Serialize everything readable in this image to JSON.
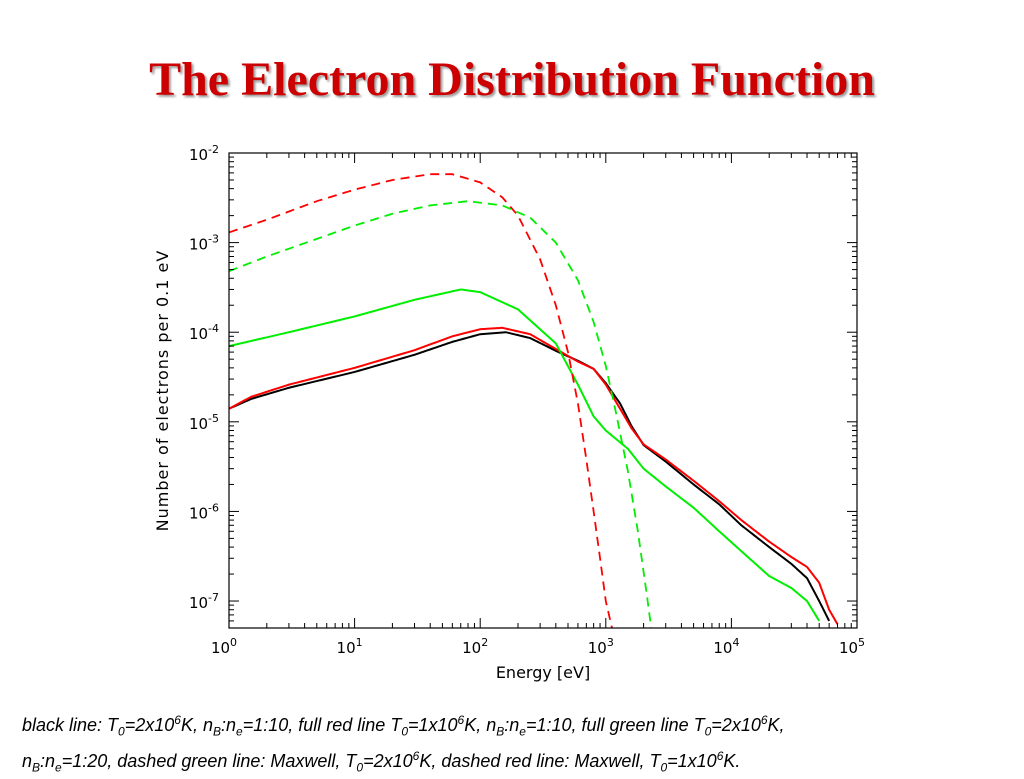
{
  "slide": {
    "title": "The Electron Distribution Function"
  },
  "chart_data": {
    "type": "line",
    "xlabel": "Energy [eV]",
    "ylabel": "Number of electrons per 0.1 eV",
    "xscale": "log",
    "yscale": "log",
    "xlim": [
      1,
      100000
    ],
    "ylim": [
      5e-08,
      0.01
    ],
    "x_tick_labels": [
      {
        "base": "10",
        "exp": "0"
      },
      {
        "base": "10",
        "exp": "1"
      },
      {
        "base": "10",
        "exp": "2"
      },
      {
        "base": "10",
        "exp": "3"
      },
      {
        "base": "10",
        "exp": "4"
      },
      {
        "base": "10",
        "exp": "5"
      }
    ],
    "y_tick_labels": [
      {
        "base": "10",
        "exp": "-7"
      },
      {
        "base": "10",
        "exp": "-6"
      },
      {
        "base": "10",
        "exp": "-5"
      },
      {
        "base": "10",
        "exp": "-4"
      },
      {
        "base": "10",
        "exp": "-3"
      },
      {
        "base": "10",
        "exp": "-2"
      }
    ],
    "series": [
      {
        "color": "#000000",
        "style": "solid",
        "points": [
          [
            1,
            1.4e-05
          ],
          [
            1.5,
            1.8e-05
          ],
          [
            3,
            2.4e-05
          ],
          [
            10,
            3.6e-05
          ],
          [
            30,
            5.6e-05
          ],
          [
            60,
            7.8e-05
          ],
          [
            100,
            9.5e-05
          ],
          [
            160,
            0.0001
          ],
          [
            250,
            8.6e-05
          ],
          [
            400,
            6.2e-05
          ],
          [
            600,
            4.8e-05
          ],
          [
            800,
            3.9e-05
          ],
          [
            1000,
            2.7e-05
          ],
          [
            1300,
            1.6e-05
          ],
          [
            1600,
            9e-06
          ],
          [
            2000,
            5.5e-06
          ],
          [
            3000,
            3.6e-06
          ],
          [
            5000,
            2e-06
          ],
          [
            8000,
            1.2e-06
          ],
          [
            12000,
            7e-07
          ],
          [
            20000,
            4e-07
          ],
          [
            30000,
            2.6e-07
          ],
          [
            40000,
            1.8e-07
          ],
          [
            50000,
            1e-07
          ],
          [
            60000,
            6e-08
          ]
        ]
      },
      {
        "color": "#ff0000",
        "style": "solid",
        "points": [
          [
            1,
            1.4e-05
          ],
          [
            1.5,
            1.9e-05
          ],
          [
            3,
            2.6e-05
          ],
          [
            10,
            4e-05
          ],
          [
            30,
            6.3e-05
          ],
          [
            60,
            9e-05
          ],
          [
            100,
            0.000108
          ],
          [
            150,
            0.000112
          ],
          [
            250,
            9.5e-05
          ],
          [
            400,
            6.5e-05
          ],
          [
            600,
            4.7e-05
          ],
          [
            800,
            3.9e-05
          ],
          [
            1000,
            2.6e-05
          ],
          [
            1300,
            1.4e-05
          ],
          [
            1600,
            8.5e-06
          ],
          [
            2000,
            5.6e-06
          ],
          [
            3000,
            3.8e-06
          ],
          [
            5000,
            2.2e-06
          ],
          [
            8000,
            1.3e-06
          ],
          [
            12000,
            8e-07
          ],
          [
            20000,
            4.6e-07
          ],
          [
            30000,
            3.1e-07
          ],
          [
            40000,
            2.4e-07
          ],
          [
            50000,
            1.6e-07
          ],
          [
            60000,
            8e-08
          ],
          [
            70000,
            5.5e-08
          ]
        ]
      },
      {
        "color": "#00ee00",
        "style": "solid",
        "points": [
          [
            1,
            7e-05
          ],
          [
            3,
            0.0001
          ],
          [
            10,
            0.00015
          ],
          [
            30,
            0.00023
          ],
          [
            70,
            0.0003
          ],
          [
            100,
            0.00028
          ],
          [
            200,
            0.00018
          ],
          [
            400,
            7.5e-05
          ],
          [
            600,
            2.6e-05
          ],
          [
            800,
            1.15e-05
          ],
          [
            1000,
            8e-06
          ],
          [
            1500,
            5e-06
          ],
          [
            2000,
            3e-06
          ],
          [
            3000,
            1.9e-06
          ],
          [
            5000,
            1.1e-06
          ],
          [
            8000,
            6e-07
          ],
          [
            12000,
            3.6e-07
          ],
          [
            20000,
            1.9e-07
          ],
          [
            30000,
            1.4e-07
          ],
          [
            40000,
            1e-07
          ],
          [
            50000,
            6e-08
          ]
        ]
      },
      {
        "color": "#ff0000",
        "style": "dashed",
        "points": [
          [
            1,
            0.0013
          ],
          [
            2,
            0.0018
          ],
          [
            5,
            0.0029
          ],
          [
            10,
            0.0039
          ],
          [
            20,
            0.005
          ],
          [
            40,
            0.0058
          ],
          [
            60,
            0.0058
          ],
          [
            100,
            0.0047
          ],
          [
            150,
            0.0032
          ],
          [
            200,
            0.002
          ],
          [
            300,
            0.00065
          ],
          [
            400,
            0.0002
          ],
          [
            500,
            6e-05
          ],
          [
            600,
            1.6e-05
          ],
          [
            700,
            3.8e-06
          ],
          [
            800,
            1e-06
          ],
          [
            900,
            3e-07
          ],
          [
            1000,
            1e-07
          ],
          [
            1120,
            5e-08
          ]
        ]
      },
      {
        "color": "#00ee00",
        "style": "dashed",
        "points": [
          [
            1,
            0.00048
          ],
          [
            2,
            0.0007
          ],
          [
            5,
            0.0011
          ],
          [
            10,
            0.00155
          ],
          [
            20,
            0.0021
          ],
          [
            40,
            0.0026
          ],
          [
            80,
            0.0029
          ],
          [
            150,
            0.0026
          ],
          [
            250,
            0.0019
          ],
          [
            400,
            0.001
          ],
          [
            600,
            0.00038
          ],
          [
            800,
            0.00013
          ],
          [
            1000,
            4.2e-05
          ],
          [
            1200,
            1.3e-05
          ],
          [
            1500,
            2.8e-06
          ],
          [
            1800,
            6e-07
          ],
          [
            2100,
            1.3e-07
          ],
          [
            2300,
            5e-08
          ]
        ]
      }
    ]
  },
  "caption": {
    "s1": "black line: T",
    "s2": "0",
    "s3": "=2x10",
    "s4": "6",
    "s5": "K, n",
    "s6": "B",
    "s7": ":n",
    "s8": "e",
    "s9": "=1:10, full red line T",
    "s10": "0",
    "s11": "=1x10",
    "s12": "6",
    "s13": "K, n",
    "s14": "B",
    "s15": ":n",
    "s16": "e",
    "s17": "=1:10, full green line T",
    "s18": "0",
    "s19": "=2x10",
    "s20": "6",
    "s21": "K,",
    "s22": "n",
    "s23": "B",
    "s24": ":n",
    "s25": "e",
    "s26": "=1:20, dashed green line: Maxwell, T",
    "s27": "0",
    "s28": "=2x10",
    "s29": "6",
    "s30": "K, dashed red line: Maxwell, T",
    "s31": "0",
    "s32": "=1x10",
    "s33": "6",
    "s34": "K."
  }
}
